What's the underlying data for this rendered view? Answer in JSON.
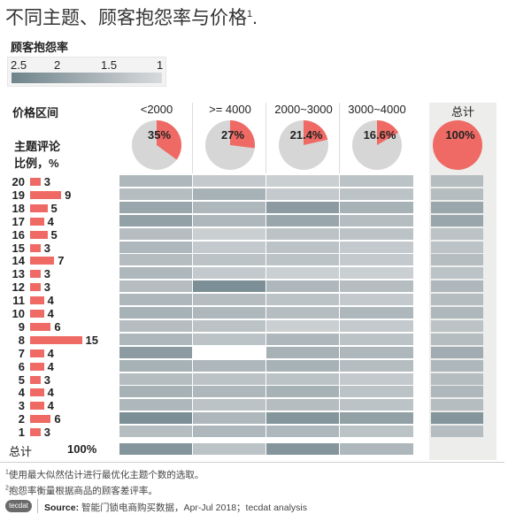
{
  "title": {
    "text": "不同主题、顾客抱怨率与价格",
    "sup": "1",
    "suffix": "."
  },
  "legend": {
    "title": "顾客抱怨率",
    "ticks": [
      "2.5",
      "2",
      "1.5",
      "1"
    ]
  },
  "price_label": "价格区间",
  "theme_label_line1": "主题评论",
  "theme_label_line2": "比例，%",
  "columns": [
    "<2000",
    ">= 4000",
    "2000~3000",
    "3000~4000"
  ],
  "total_col": "总计",
  "total_row_label": "总计",
  "total_row_pct": "100%",
  "footnotes": {
    "n1_mark": "1",
    "n1": "使用最大似然估计进行最优化主题个数的选取。",
    "n2_mark": "2",
    "n2": "抱怨率衡量根据商品的顾客差评率。"
  },
  "source": {
    "logo": "tecdat",
    "label": "Source:",
    "text": " 智能门锁电商购买数据，Apr-Jul 2018；tecdat analysis"
  },
  "colors": {
    "accent": "#ef6a64",
    "dark": "#6f848b",
    "light": "#d8dadc",
    "white": "#ffffff"
  },
  "chart_data": {
    "type": "heatmap",
    "title": "不同主题、顾客抱怨率与价格",
    "pies": [
      {
        "column": "<2000",
        "percent": 35,
        "label": "35%"
      },
      {
        "column": ">= 4000",
        "percent": 27,
        "label": "27%"
      },
      {
        "column": "2000~3000",
        "percent": 21.4,
        "label": "21.4%"
      },
      {
        "column": "3000~4000",
        "percent": 16.6,
        "label": "16.6%"
      },
      {
        "column": "总计",
        "percent": 100,
        "label": "100%"
      }
    ],
    "themes": [
      "20",
      "19",
      "18",
      "17",
      "16",
      "15",
      "14",
      "13",
      "12",
      "11",
      "10",
      "9",
      "8",
      "7",
      "6",
      "5",
      "4",
      "3",
      "2",
      "1"
    ],
    "theme_share_pct": [
      3,
      9,
      5,
      4,
      5,
      3,
      7,
      3,
      3,
      4,
      4,
      6,
      15,
      4,
      4,
      3,
      4,
      4,
      6,
      3
    ],
    "complaint_scale": [
      1,
      2.5
    ],
    "complaint": [
      [
        1.6,
        1.3,
        1.2,
        1.4,
        1.5
      ],
      [
        1.5,
        1.7,
        1.3,
        1.4,
        1.5
      ],
      [
        1.9,
        1.6,
        2.1,
        1.7,
        1.9
      ],
      [
        2.0,
        1.6,
        1.9,
        1.5,
        1.9
      ],
      [
        1.5,
        1.2,
        1.4,
        1.4,
        1.4
      ],
      [
        1.6,
        1.3,
        1.4,
        1.3,
        1.4
      ],
      [
        1.5,
        1.4,
        1.4,
        1.3,
        1.5
      ],
      [
        1.6,
        1.3,
        1.2,
        1.2,
        1.4
      ],
      [
        1.5,
        2.3,
        1.6,
        1.5,
        1.6
      ],
      [
        1.6,
        1.5,
        1.4,
        1.3,
        1.5
      ],
      [
        1.7,
        1.6,
        1.5,
        1.6,
        1.6
      ],
      [
        1.5,
        1.4,
        1.2,
        1.3,
        1.4
      ],
      [
        1.6,
        1.4,
        1.6,
        1.4,
        1.5
      ],
      [
        2.1,
        1.0,
        1.7,
        1.6,
        1.8
      ],
      [
        1.7,
        1.6,
        1.7,
        1.5,
        1.6
      ],
      [
        1.5,
        1.4,
        1.4,
        1.3,
        1.5
      ],
      [
        1.7,
        1.6,
        1.7,
        1.4,
        1.6
      ],
      [
        1.6,
        1.4,
        1.5,
        1.4,
        1.5
      ],
      [
        2.3,
        1.6,
        2.2,
        2.0,
        2.2
      ],
      [
        1.5,
        1.6,
        1.6,
        1.4,
        1.5
      ]
    ],
    "complaint_total_row": [
      2.2,
      1.4,
      2.2,
      1.6
    ]
  }
}
